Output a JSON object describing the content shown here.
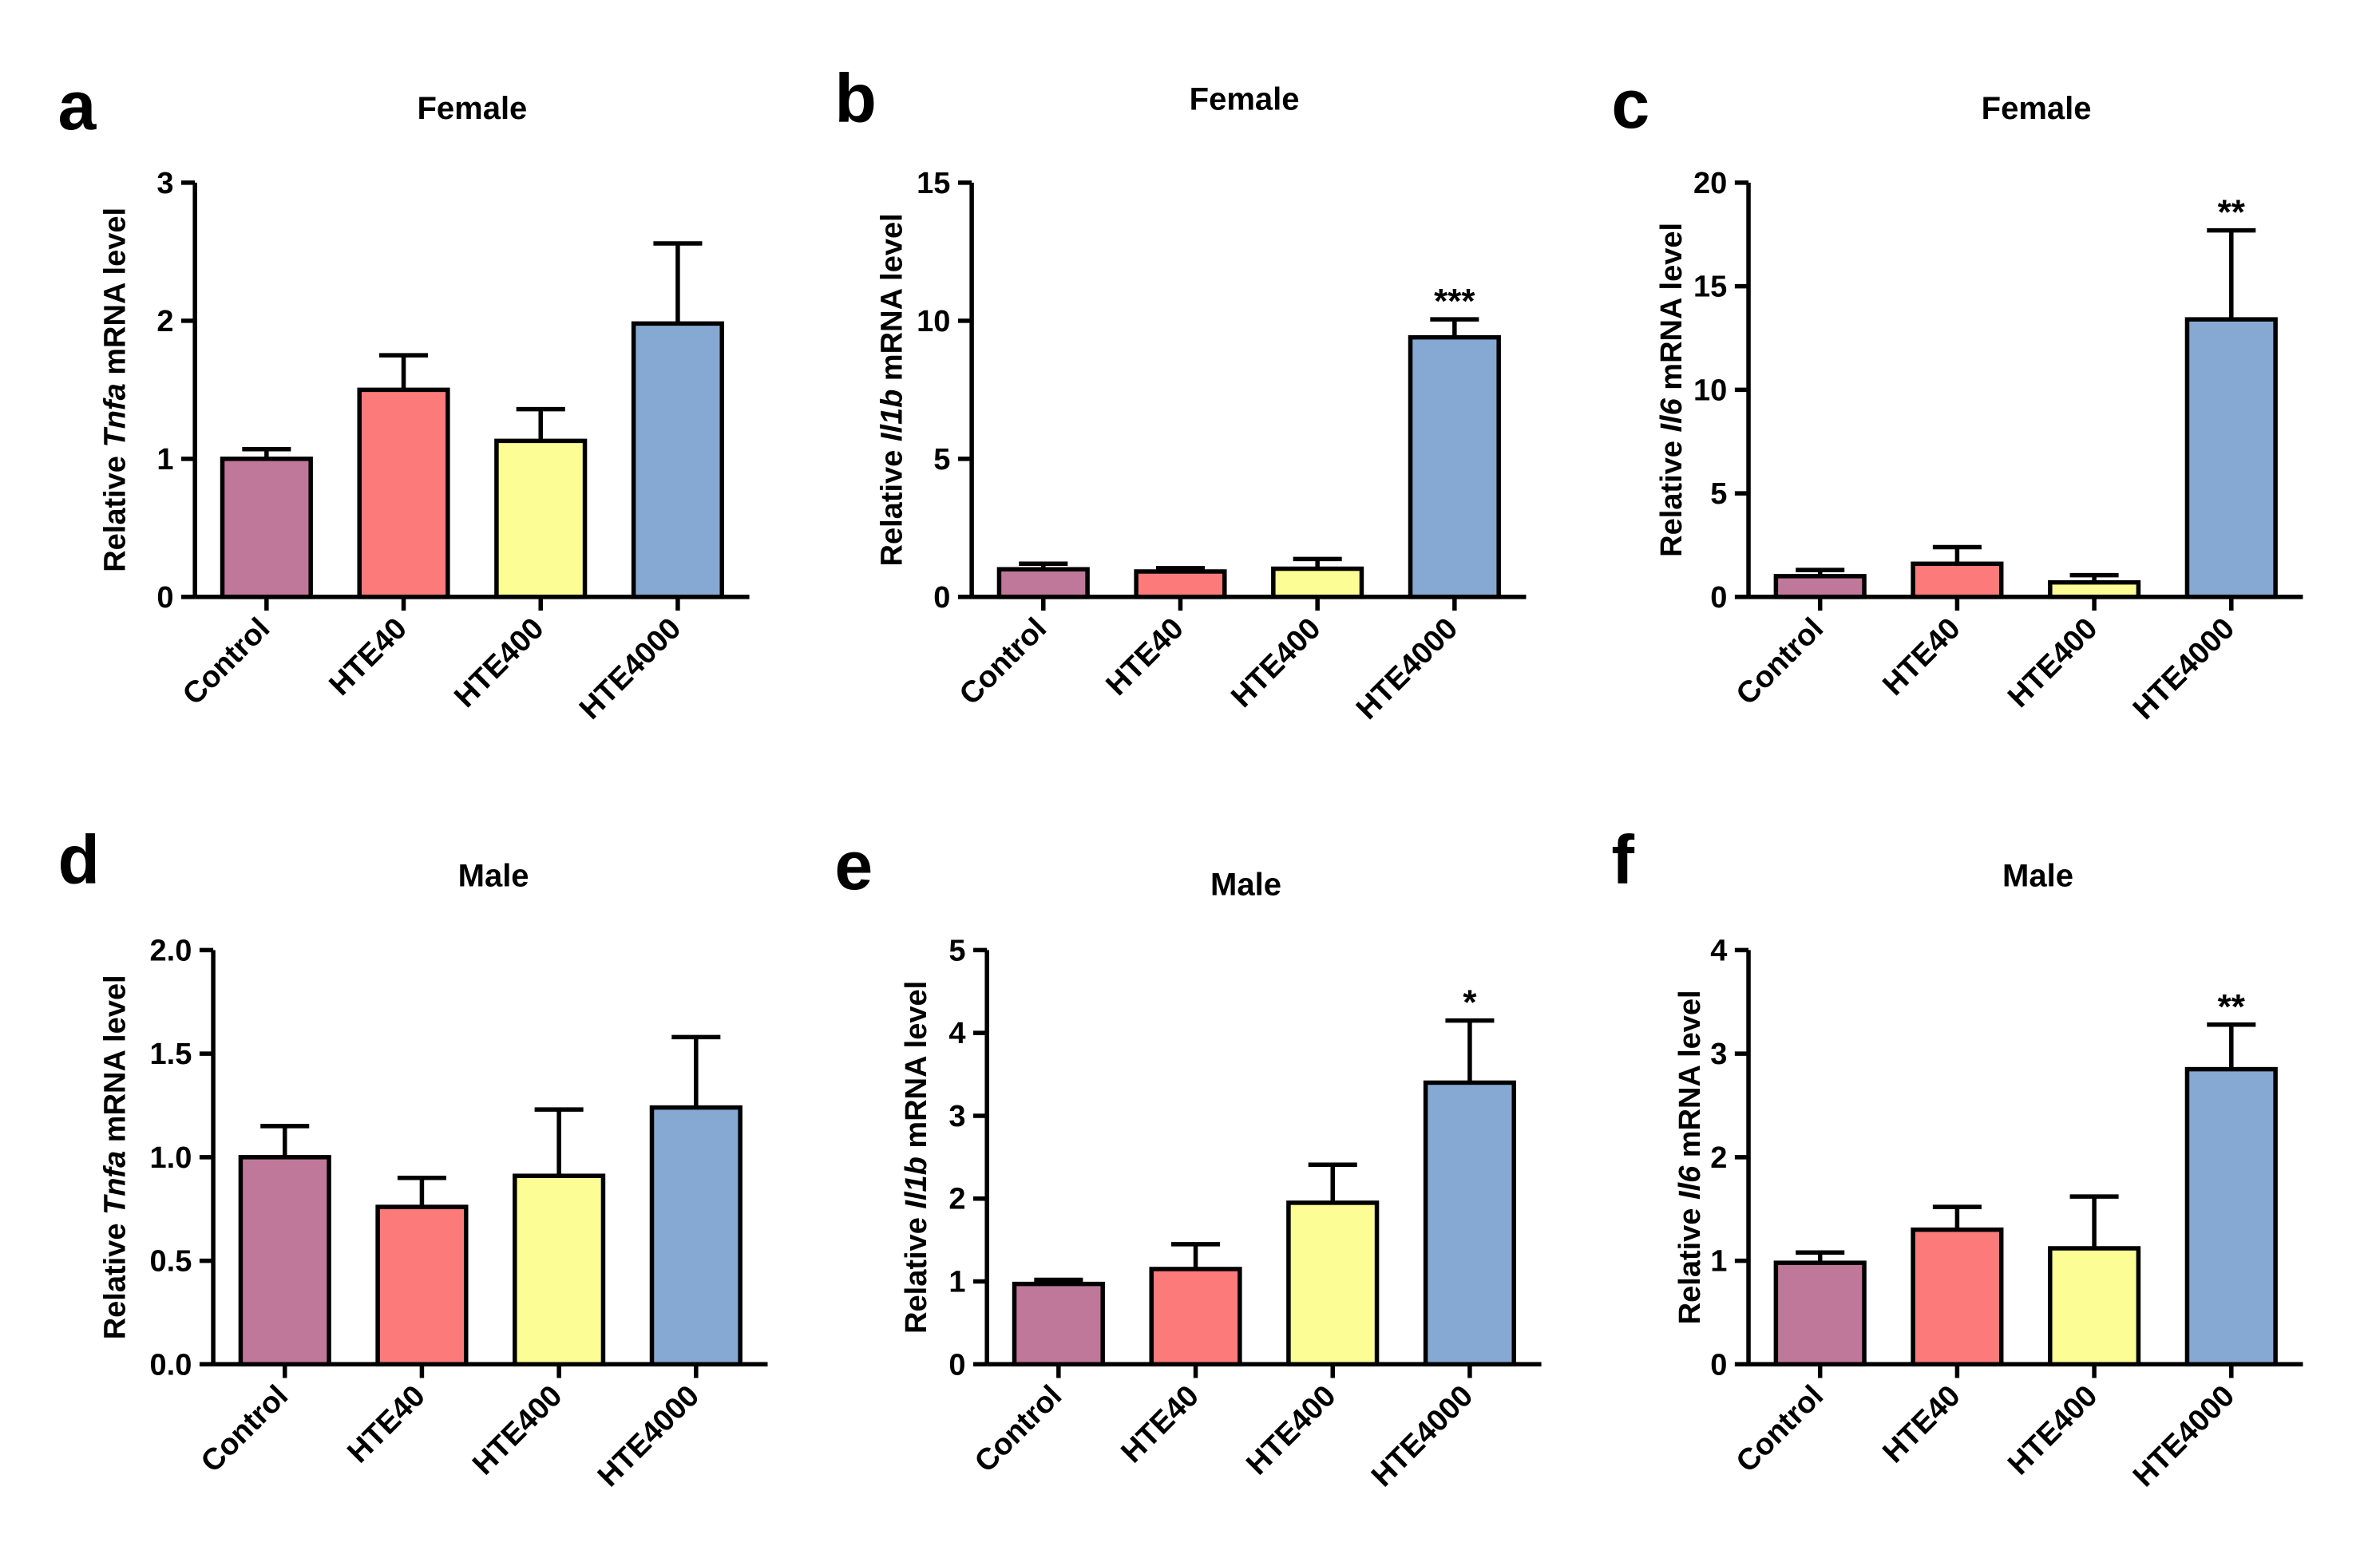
{
  "chart_data": [
    {
      "panel": "a",
      "title": "Female",
      "type": "bar",
      "ylabel_pre": "Relative ",
      "ylabel_gene": "Tnfa",
      "ylabel_post": " mRNA level",
      "categories": [
        "Control",
        "HTE40",
        "HTE400",
        "HTE4000"
      ],
      "values": [
        1.0,
        1.5,
        1.13,
        1.98
      ],
      "errors": [
        0.07,
        0.25,
        0.23,
        0.58
      ],
      "significance": [
        "",
        "",
        "",
        ""
      ],
      "ylim": [
        0,
        3
      ],
      "yticks": [
        0,
        1,
        2,
        3
      ],
      "ytick_labels": [
        "0",
        "1",
        "2",
        "3"
      ]
    },
    {
      "panel": "b",
      "title": "Female",
      "type": "bar",
      "ylabel_pre": "Relative ",
      "ylabel_gene": "Il1b",
      "ylabel_post": " mRNA level",
      "categories": [
        "Control",
        "HTE40",
        "HTE400",
        "HTE4000"
      ],
      "values": [
        1.0,
        0.92,
        1.02,
        9.4
      ],
      "errors": [
        0.2,
        0.12,
        0.35,
        0.65
      ],
      "significance": [
        "",
        "",
        "",
        "***"
      ],
      "ylim": [
        0,
        15
      ],
      "yticks": [
        0,
        5,
        10,
        15
      ],
      "ytick_labels": [
        "0",
        "5",
        "10",
        "15"
      ]
    },
    {
      "panel": "c",
      "title": "Female",
      "type": "bar",
      "ylabel_pre": "Relative ",
      "ylabel_gene": "Il6",
      "ylabel_post": " mRNA level",
      "categories": [
        "Control",
        "HTE40",
        "HTE400",
        "HTE4000"
      ],
      "values": [
        1.0,
        1.6,
        0.7,
        13.4
      ],
      "errors": [
        0.3,
        0.8,
        0.35,
        4.3
      ],
      "significance": [
        "",
        "",
        "",
        "**"
      ],
      "ylim": [
        0,
        20
      ],
      "yticks": [
        0,
        5,
        10,
        15,
        20
      ],
      "ytick_labels": [
        "0",
        "5",
        "10",
        "15",
        "20"
      ]
    },
    {
      "panel": "d",
      "title": "Male",
      "type": "bar",
      "ylabel_pre": "Relative ",
      "ylabel_gene": "Tnfa",
      "ylabel_post": " mRNA level",
      "categories": [
        "Control",
        "HTE40",
        "HTE400",
        "HTE4000"
      ],
      "values": [
        1.0,
        0.76,
        0.91,
        1.24
      ],
      "errors": [
        0.15,
        0.14,
        0.32,
        0.34
      ],
      "significance": [
        "",
        "",
        "",
        ""
      ],
      "ylim": [
        0,
        2.0
      ],
      "yticks": [
        0,
        0.5,
        1.0,
        1.5,
        2.0
      ],
      "ytick_labels": [
        "0.0",
        "0.5",
        "1.0",
        "1.5",
        "2.0"
      ]
    },
    {
      "panel": "e",
      "title": "Male",
      "type": "bar",
      "ylabel_pre": "Relative ",
      "ylabel_gene": "Il1b",
      "ylabel_post": " mRNA level",
      "categories": [
        "Control",
        "HTE40",
        "HTE400",
        "HTE4000"
      ],
      "values": [
        0.97,
        1.15,
        1.95,
        3.4
      ],
      "errors": [
        0.05,
        0.3,
        0.46,
        0.75
      ],
      "significance": [
        "",
        "",
        "",
        "*"
      ],
      "ylim": [
        0,
        5
      ],
      "yticks": [
        0,
        1,
        2,
        3,
        4,
        5
      ],
      "ytick_labels": [
        "0",
        "1",
        "2",
        "3",
        "4",
        "5"
      ]
    },
    {
      "panel": "f",
      "title": "Male",
      "type": "bar",
      "ylabel_pre": "Relative ",
      "ylabel_gene": "Il6",
      "ylabel_post": " mRNA level",
      "categories": [
        "Control",
        "HTE40",
        "HTE400",
        "HTE4000"
      ],
      "values": [
        0.98,
        1.3,
        1.12,
        2.85
      ],
      "errors": [
        0.1,
        0.22,
        0.5,
        0.43
      ],
      "significance": [
        "",
        "",
        "",
        "**"
      ],
      "ylim": [
        0,
        4
      ],
      "yticks": [
        0,
        1,
        2,
        3,
        4
      ],
      "ytick_labels": [
        "0",
        "1",
        "2",
        "3",
        "4"
      ]
    }
  ],
  "colors": {
    "bars": [
      "#c0789a",
      "#fd7a7a",
      "#fdfd96",
      "#86a9d3"
    ],
    "outline": "#000000"
  }
}
